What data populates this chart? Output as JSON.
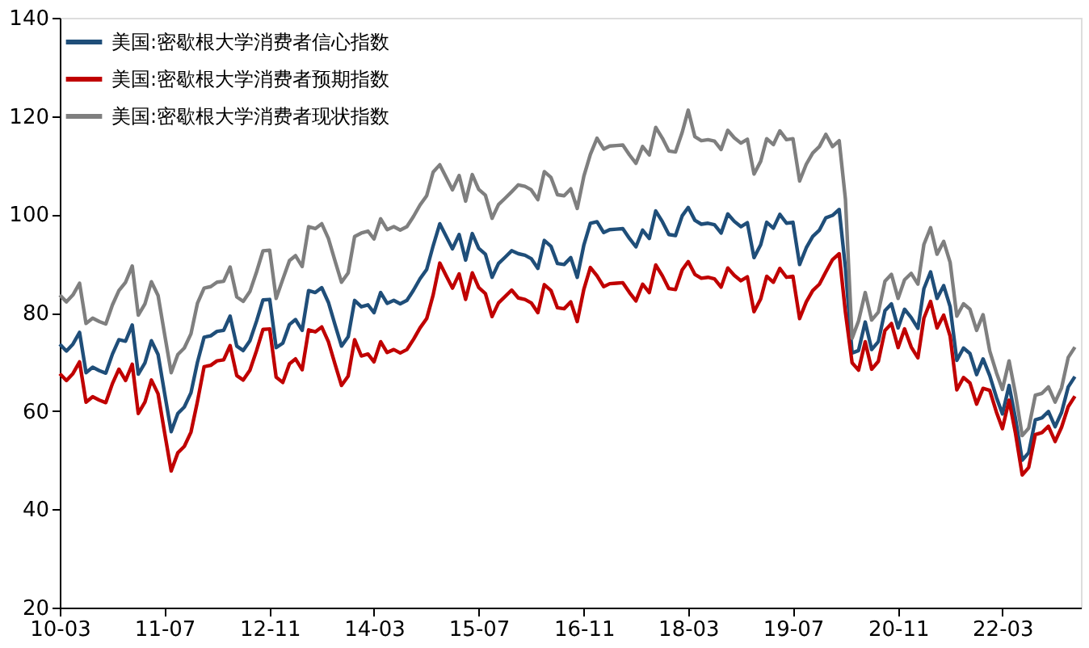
{
  "chart_data": {
    "type": "line",
    "x": [
      "2010-03",
      "2010-04",
      "2010-05",
      "2010-06",
      "2010-07",
      "2010-08",
      "2010-09",
      "2010-10",
      "2010-11",
      "2010-12",
      "2011-01",
      "2011-02",
      "2011-03",
      "2011-04",
      "2011-05",
      "2011-06",
      "2011-07",
      "2011-08",
      "2011-09",
      "2011-10",
      "2011-11",
      "2011-12",
      "2012-01",
      "2012-02",
      "2012-03",
      "2012-04",
      "2012-05",
      "2012-06",
      "2012-07",
      "2012-08",
      "2012-09",
      "2012-10",
      "2012-11",
      "2012-12",
      "2013-01",
      "2013-02",
      "2013-03",
      "2013-04",
      "2013-05",
      "2013-06",
      "2013-07",
      "2013-08",
      "2013-09",
      "2013-10",
      "2013-11",
      "2013-12",
      "2014-01",
      "2014-02",
      "2014-03",
      "2014-04",
      "2014-05",
      "2014-06",
      "2014-07",
      "2014-08",
      "2014-09",
      "2014-10",
      "2014-11",
      "2014-12",
      "2015-01",
      "2015-02",
      "2015-03",
      "2015-04",
      "2015-05",
      "2015-06",
      "2015-07",
      "2015-08",
      "2015-09",
      "2015-10",
      "2015-11",
      "2015-12",
      "2016-01",
      "2016-02",
      "2016-03",
      "2016-04",
      "2016-05",
      "2016-06",
      "2016-07",
      "2016-08",
      "2016-09",
      "2016-10",
      "2016-11",
      "2016-12",
      "2017-01",
      "2017-02",
      "2017-03",
      "2017-04",
      "2017-05",
      "2017-06",
      "2017-07",
      "2017-08",
      "2017-09",
      "2017-10",
      "2017-11",
      "2017-12",
      "2018-01",
      "2018-02",
      "2018-03",
      "2018-04",
      "2018-05",
      "2018-06",
      "2018-07",
      "2018-08",
      "2018-09",
      "2018-10",
      "2018-11",
      "2018-12",
      "2019-01",
      "2019-02",
      "2019-03",
      "2019-04",
      "2019-05",
      "2019-06",
      "2019-07",
      "2019-08",
      "2019-09",
      "2019-10",
      "2019-11",
      "2019-12",
      "2020-01",
      "2020-02",
      "2020-03",
      "2020-04",
      "2020-05",
      "2020-06",
      "2020-07",
      "2020-08",
      "2020-09",
      "2020-10",
      "2020-11",
      "2020-12",
      "2021-01",
      "2021-02",
      "2021-03",
      "2021-04",
      "2021-05",
      "2021-06",
      "2021-07",
      "2021-08",
      "2021-09",
      "2021-10",
      "2021-11",
      "2021-12",
      "2022-01",
      "2022-02",
      "2022-03",
      "2022-04",
      "2022-05",
      "2022-06",
      "2022-07",
      "2022-08",
      "2022-09",
      "2022-10",
      "2022-11",
      "2022-12",
      "2023-01",
      "2023-02"
    ],
    "xlim": [
      "2010-03",
      "2023-03"
    ],
    "ylim": [
      20,
      140
    ],
    "yticks": [
      20,
      40,
      60,
      80,
      100,
      120,
      140
    ],
    "xticks": [
      {
        "value": "2010-03",
        "label": "10-03"
      },
      {
        "value": "2011-07",
        "label": "11-07"
      },
      {
        "value": "2012-11",
        "label": "12-11"
      },
      {
        "value": "2014-03",
        "label": "14-03"
      },
      {
        "value": "2015-07",
        "label": "15-07"
      },
      {
        "value": "2016-11",
        "label": "16-11"
      },
      {
        "value": "2018-03",
        "label": "18-03"
      },
      {
        "value": "2019-07",
        "label": "19-07"
      },
      {
        "value": "2020-11",
        "label": "20-11"
      },
      {
        "value": "2022-03",
        "label": "22-03"
      }
    ],
    "legend": "top left",
    "grid": false,
    "series": [
      {
        "name": "美国:密歇根大学消费者信心指数",
        "color": "#1f4e79",
        "values": [
          73.6,
          72.2,
          73.6,
          76.0,
          67.8,
          68.9,
          68.2,
          67.7,
          71.6,
          74.5,
          74.2,
          77.5,
          67.5,
          69.8,
          74.3,
          71.5,
          63.7,
          55.8,
          59.5,
          60.8,
          63.7,
          69.9,
          75.0,
          75.3,
          76.2,
          76.4,
          79.3,
          73.2,
          72.3,
          74.3,
          78.3,
          82.6,
          82.7,
          72.9,
          73.8,
          77.6,
          78.6,
          76.4,
          84.5,
          84.1,
          85.1,
          82.1,
          77.5,
          73.2,
          75.1,
          82.5,
          81.2,
          81.6,
          80.0,
          84.1,
          81.9,
          82.5,
          81.8,
          82.5,
          84.6,
          86.9,
          88.8,
          93.6,
          98.1,
          95.4,
          93.0,
          95.9,
          90.7,
          96.1,
          93.1,
          91.9,
          87.2,
          90.0,
          91.3,
          92.6,
          92.0,
          91.7,
          91.0,
          89.0,
          94.7,
          93.5,
          90.0,
          89.8,
          91.2,
          87.2,
          93.8,
          98.2,
          98.5,
          96.3,
          96.9,
          97.0,
          97.1,
          95.1,
          93.4,
          96.8,
          95.1,
          100.7,
          98.5,
          95.9,
          95.7,
          99.7,
          101.4,
          98.8,
          98.0,
          98.2,
          97.9,
          96.2,
          100.1,
          98.6,
          97.5,
          98.3,
          91.2,
          93.8,
          98.4,
          97.2,
          100.0,
          98.2,
          98.4,
          89.8,
          93.2,
          95.5,
          96.8,
          99.3,
          99.8,
          101.0,
          89.1,
          71.8,
          72.3,
          78.1,
          72.5,
          74.1,
          80.4,
          81.8,
          76.9,
          80.7,
          79.0,
          76.8,
          84.9,
          88.3,
          82.9,
          85.5,
          81.2,
          70.3,
          72.8,
          71.7,
          67.4,
          70.6,
          67.2,
          62.8,
          59.4,
          65.2,
          58.4,
          50.0,
          51.5,
          58.2,
          58.6,
          59.9,
          56.8,
          59.7,
          64.9,
          67.0
        ]
      },
      {
        "name": "美国:密歇根大学消费者预期指数",
        "color": "#c00000",
        "values": [
          67.6,
          66.2,
          67.6,
          70.0,
          61.8,
          62.9,
          62.2,
          61.7,
          65.6,
          68.5,
          66.2,
          69.5,
          59.5,
          61.8,
          66.3,
          63.5,
          55.7,
          47.8,
          51.5,
          52.8,
          55.7,
          61.9,
          69.0,
          69.3,
          70.2,
          70.4,
          73.3,
          67.2,
          66.3,
          68.3,
          72.3,
          76.6,
          76.7,
          66.9,
          65.8,
          69.6,
          70.6,
          68.4,
          76.5,
          76.1,
          77.1,
          74.1,
          69.5,
          65.2,
          67.1,
          74.5,
          71.2,
          71.6,
          70.0,
          74.1,
          71.9,
          72.5,
          71.8,
          72.5,
          74.6,
          76.9,
          78.8,
          83.6,
          90.1,
          87.4,
          85.0,
          87.9,
          82.7,
          88.1,
          85.1,
          83.9,
          79.2,
          82.0,
          83.3,
          84.6,
          83.0,
          82.7,
          82.0,
          80.0,
          85.7,
          84.5,
          81.0,
          80.8,
          82.2,
          78.2,
          84.8,
          89.2,
          87.5,
          85.3,
          85.9,
          86.0,
          86.1,
          84.1,
          82.4,
          85.8,
          84.1,
          89.7,
          87.5,
          84.9,
          84.7,
          88.7,
          90.4,
          87.8,
          87.0,
          87.2,
          86.9,
          85.2,
          89.1,
          87.6,
          86.5,
          87.3,
          80.2,
          82.8,
          87.4,
          86.2,
          89.0,
          87.2,
          87.4,
          78.8,
          82.2,
          84.5,
          85.8,
          88.3,
          90.8,
          92.0,
          80.1,
          69.8,
          68.3,
          74.1,
          68.5,
          70.1,
          76.4,
          77.8,
          72.9,
          76.7,
          73.0,
          70.8,
          78.9,
          82.3,
          76.9,
          79.5,
          75.2,
          64.3,
          66.8,
          65.7,
          61.4,
          64.6,
          64.2,
          59.8,
          56.4,
          62.2,
          55.4,
          47.0,
          48.5,
          55.2,
          55.6,
          56.9,
          53.8,
          56.7,
          60.9,
          63.0
        ]
      },
      {
        "name": "美国:密歇根大学消费者现状指数",
        "color": "#7f7f7f",
        "values": [
          83.6,
          82.2,
          83.6,
          86.0,
          77.8,
          78.9,
          78.2,
          77.7,
          81.6,
          84.5,
          86.2,
          89.5,
          79.5,
          81.8,
          86.3,
          83.5,
          75.7,
          67.8,
          71.5,
          72.8,
          75.7,
          81.9,
          85.0,
          85.3,
          86.2,
          86.4,
          89.3,
          83.2,
          82.3,
          84.3,
          88.3,
          92.6,
          92.7,
          82.9,
          86.8,
          90.6,
          91.6,
          89.4,
          97.5,
          97.1,
          98.1,
          95.1,
          90.5,
          86.2,
          88.1,
          95.5,
          96.2,
          96.6,
          95.0,
          99.1,
          96.9,
          97.5,
          96.8,
          97.5,
          99.6,
          101.9,
          103.8,
          108.6,
          110.1,
          107.4,
          105.0,
          107.9,
          102.7,
          108.1,
          105.1,
          103.9,
          99.2,
          102.0,
          103.3,
          104.6,
          106.0,
          105.7,
          105.0,
          103.0,
          108.7,
          107.5,
          104.0,
          103.8,
          105.2,
          101.2,
          107.8,
          112.2,
          115.5,
          113.3,
          113.9,
          114.0,
          114.1,
          112.1,
          110.4,
          113.8,
          112.1,
          117.7,
          115.5,
          112.9,
          112.7,
          116.7,
          121.2,
          115.8,
          115.0,
          115.2,
          114.9,
          113.2,
          117.1,
          115.6,
          114.5,
          115.3,
          108.2,
          110.8,
          115.4,
          114.2,
          117.0,
          115.2,
          115.4,
          106.8,
          110.2,
          112.5,
          113.8,
          116.3,
          113.8,
          115.0,
          103.1,
          74.8,
          78.3,
          84.1,
          78.5,
          80.1,
          86.4,
          87.8,
          82.9,
          86.7,
          88.0,
          85.8,
          93.9,
          97.3,
          91.9,
          94.5,
          90.2,
          79.3,
          81.8,
          80.7,
          76.4,
          79.6,
          72.2,
          67.8,
          64.4,
          70.2,
          63.4,
          55.0,
          56.5,
          63.2,
          63.6,
          64.9,
          61.8,
          64.7,
          70.9,
          73.0
        ]
      }
    ]
  }
}
